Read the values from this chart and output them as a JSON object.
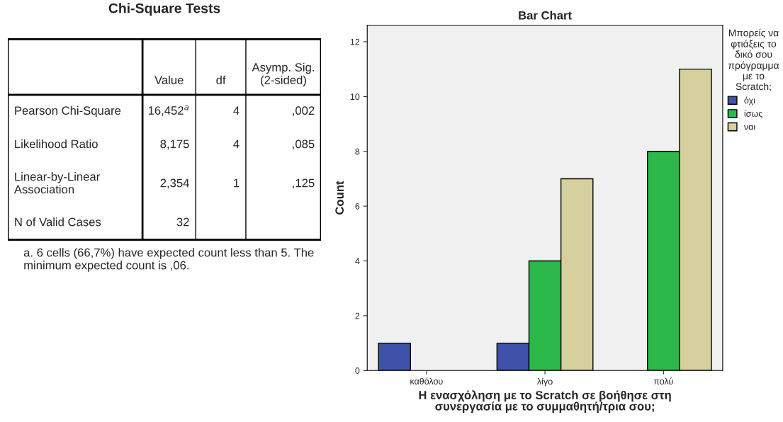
{
  "chart_data": [
    {
      "type": "other",
      "title": "Chi-Square Tests",
      "annotations": [
        "Value",
        "df",
        "Asymp. Sig.\n(2-sided)",
        "Pearson Chi-Square",
        "16,452$^{a}$",
        "4",
        ",002",
        "Likelihood Ratio",
        "8,175",
        "4",
        ",085",
        "Linear-by-Linear\nAssociation",
        "2,354",
        "1",
        ",125",
        "N of Valid Cases",
        "32",
        "a. 6 cells (66,7%) have expected count less than 5. The\nminimum expected count is ,06."
      ]
    },
    {
      "type": "bar",
      "title": "Bar Chart",
      "xlabel": "Η ενασχόληση με το Scratch σε βοήθησε στη\nσυνεργασία με το συμμαθητή/τρια σου;",
      "ylabel": "Count",
      "categories": [
        "καθόλου",
        "λίγο",
        "πολύ"
      ],
      "series": [
        {
          "name": "όχι",
          "color": "#3f51a8",
          "values": [
            1,
            1,
            null
          ]
        },
        {
          "name": "ίσως",
          "color": "#2db84a",
          "values": [
            null,
            4,
            8
          ]
        },
        {
          "name": "ναι",
          "color": "#d6cf9e",
          "values": [
            null,
            7,
            11
          ]
        }
      ],
      "legend_title": "Μπορείς να\nφτιάξεις το\nδικό σου\nπρόγραμμα\nμε το\nScratch;",
      "legend": "top right",
      "ylim": [
        0,
        12.6
      ],
      "yticks": [
        0,
        2,
        4,
        6,
        8,
        10,
        12
      ],
      "grid": false
    }
  ]
}
